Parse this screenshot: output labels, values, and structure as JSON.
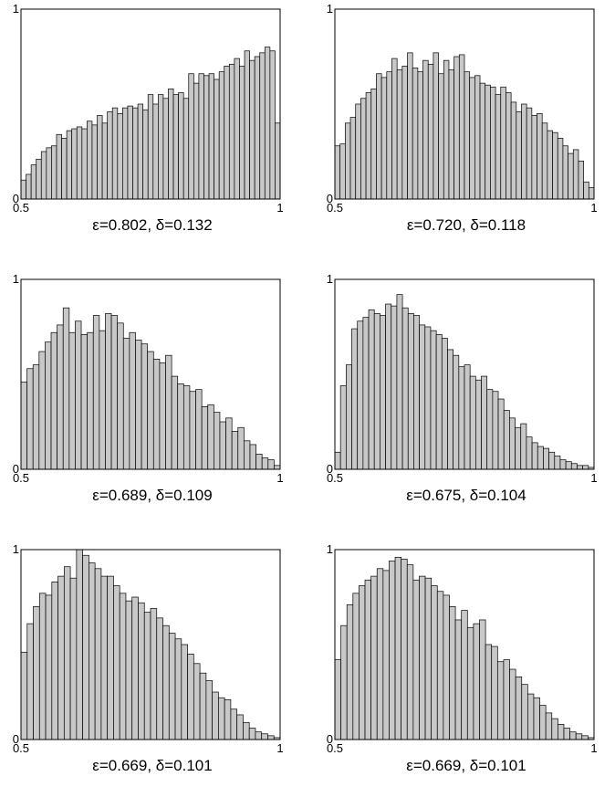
{
  "chart_data": [
    {
      "type": "bar",
      "title": "",
      "xlabel": "ε=0.802, δ=0.132",
      "xlim": [
        0.5,
        1
      ],
      "ylim": [
        0,
        1
      ],
      "xticks": [
        "0.5",
        "1"
      ],
      "yticks": [
        "0",
        "1"
      ],
      "values": [
        0.1,
        0.13,
        0.18,
        0.21,
        0.25,
        0.27,
        0.28,
        0.34,
        0.32,
        0.36,
        0.37,
        0.38,
        0.37,
        0.41,
        0.39,
        0.44,
        0.4,
        0.46,
        0.48,
        0.45,
        0.48,
        0.49,
        0.48,
        0.5,
        0.47,
        0.55,
        0.5,
        0.55,
        0.53,
        0.58,
        0.55,
        0.56,
        0.53,
        0.66,
        0.61,
        0.66,
        0.65,
        0.66,
        0.63,
        0.67,
        0.7,
        0.71,
        0.74,
        0.7,
        0.78,
        0.73,
        0.75,
        0.77,
        0.8,
        0.78,
        0.4
      ]
    },
    {
      "type": "bar",
      "title": "",
      "xlabel": "ε=0.720, δ=0.118",
      "xlim": [
        0.5,
        1
      ],
      "ylim": [
        0,
        1
      ],
      "xticks": [
        "0.5",
        "1"
      ],
      "yticks": [
        "0",
        "1"
      ],
      "values": [
        0.28,
        0.29,
        0.4,
        0.43,
        0.5,
        0.53,
        0.56,
        0.58,
        0.66,
        0.64,
        0.67,
        0.74,
        0.68,
        0.7,
        0.77,
        0.69,
        0.67,
        0.73,
        0.71,
        0.77,
        0.66,
        0.73,
        0.68,
        0.75,
        0.76,
        0.67,
        0.64,
        0.65,
        0.61,
        0.6,
        0.59,
        0.55,
        0.59,
        0.56,
        0.51,
        0.46,
        0.5,
        0.48,
        0.44,
        0.45,
        0.4,
        0.36,
        0.35,
        0.32,
        0.28,
        0.24,
        0.26,
        0.2,
        0.09,
        0.06
      ]
    },
    {
      "type": "bar",
      "title": "",
      "xlabel": "ε=0.689, δ=0.109",
      "xlim": [
        0.5,
        1
      ],
      "ylim": [
        0,
        1
      ],
      "xticks": [
        "0.5",
        "1"
      ],
      "yticks": [
        "0",
        "1"
      ],
      "values": [
        0.46,
        0.53,
        0.55,
        0.62,
        0.67,
        0.72,
        0.76,
        0.85,
        0.72,
        0.78,
        0.71,
        0.72,
        0.81,
        0.73,
        0.82,
        0.81,
        0.77,
        0.69,
        0.72,
        0.68,
        0.66,
        0.62,
        0.58,
        0.56,
        0.6,
        0.49,
        0.45,
        0.44,
        0.41,
        0.42,
        0.33,
        0.34,
        0.3,
        0.25,
        0.27,
        0.2,
        0.22,
        0.15,
        0.13,
        0.08,
        0.06,
        0.05,
        0.02
      ]
    },
    {
      "type": "bar",
      "title": "",
      "xlabel": "ε=0.675, δ=0.104",
      "xlim": [
        0.5,
        1
      ],
      "ylim": [
        0,
        1
      ],
      "xticks": [
        "0.5",
        "1"
      ],
      "yticks": [
        "0",
        "1"
      ],
      "values": [
        0.09,
        0.44,
        0.55,
        0.74,
        0.78,
        0.8,
        0.84,
        0.82,
        0.81,
        0.87,
        0.86,
        0.92,
        0.85,
        0.82,
        0.81,
        0.76,
        0.75,
        0.73,
        0.71,
        0.69,
        0.63,
        0.6,
        0.54,
        0.55,
        0.49,
        0.47,
        0.49,
        0.42,
        0.41,
        0.37,
        0.31,
        0.27,
        0.22,
        0.24,
        0.17,
        0.14,
        0.12,
        0.11,
        0.09,
        0.07,
        0.05,
        0.04,
        0.03,
        0.02,
        0.02,
        0.01
      ]
    },
    {
      "type": "bar",
      "title": "",
      "xlabel": "ε=0.669, δ=0.101",
      "xlim": [
        0.5,
        1
      ],
      "ylim": [
        0,
        1
      ],
      "xticks": [
        "0.5",
        "1"
      ],
      "yticks": [
        "0",
        "1"
      ],
      "values": [
        0.46,
        0.61,
        0.7,
        0.77,
        0.76,
        0.83,
        0.86,
        0.91,
        0.85,
        1.0,
        0.97,
        0.93,
        0.9,
        0.86,
        0.86,
        0.81,
        0.77,
        0.73,
        0.75,
        0.72,
        0.67,
        0.69,
        0.64,
        0.6,
        0.56,
        0.53,
        0.5,
        0.45,
        0.4,
        0.35,
        0.31,
        0.25,
        0.22,
        0.21,
        0.16,
        0.13,
        0.09,
        0.06,
        0.04,
        0.03,
        0.02,
        0.01
      ]
    },
    {
      "type": "bar",
      "title": "",
      "xlabel": "ε=0.669, δ=0.101",
      "xlim": [
        0.5,
        1
      ],
      "ylim": [
        0,
        1
      ],
      "xticks": [
        "0.5",
        "1"
      ],
      "yticks": [
        "0",
        "1"
      ],
      "values": [
        0.42,
        0.6,
        0.71,
        0.77,
        0.81,
        0.84,
        0.86,
        0.9,
        0.89,
        0.94,
        0.96,
        0.95,
        0.92,
        0.84,
        0.86,
        0.85,
        0.81,
        0.78,
        0.76,
        0.7,
        0.63,
        0.68,
        0.59,
        0.61,
        0.63,
        0.5,
        0.49,
        0.41,
        0.42,
        0.37,
        0.33,
        0.29,
        0.24,
        0.22,
        0.18,
        0.14,
        0.11,
        0.08,
        0.06,
        0.04,
        0.03,
        0.02,
        0.01
      ]
    }
  ]
}
